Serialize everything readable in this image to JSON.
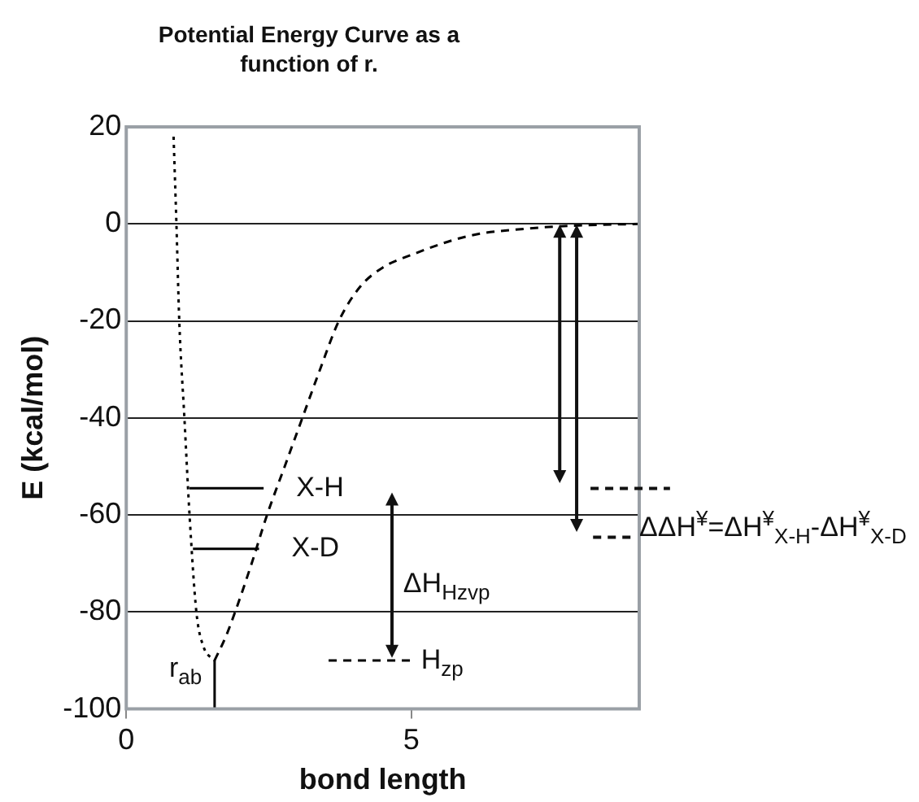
{
  "chart_data": {
    "type": "line",
    "title": "Potential Energy Curve as a function of r.",
    "xlabel": "bond length",
    "ylabel": "E (kcal/mol)",
    "xlim": [
      0,
      9
    ],
    "xticks": [
      0,
      5
    ],
    "ylim": [
      -100,
      20
    ],
    "yticks": [
      -100,
      -80,
      -60,
      -40,
      -20,
      0,
      20
    ],
    "grid": "y",
    "legend": false,
    "series": [
      {
        "color": "#000000",
        "line_style": "dotted",
        "x": [
          0.83,
          0.88,
          0.93,
          1.02,
          1.11,
          1.23,
          1.35,
          1.55
        ],
        "values": [
          18,
          0,
          -20,
          -40,
          -60,
          -80,
          -87,
          -90
        ]
      },
      {
        "color": "#000000",
        "line_style": "dashed",
        "x": [
          1.55,
          1.75,
          1.91,
          2.2,
          2.47,
          2.78,
          3.09,
          3.4,
          3.73,
          4.1,
          4.5,
          5,
          6,
          7,
          8,
          9
        ],
        "values": [
          -90,
          -85,
          -80,
          -70,
          -60,
          -50,
          -40,
          -30,
          -20,
          -13,
          -9,
          -6.4,
          -2.5,
          -1,
          -0.3,
          0
        ]
      },
      {
        "color": "#000000",
        "line_style": "solid",
        "x": [
          1.11,
          2.41
        ],
        "values": [
          -54.5,
          -54.5
        ]
      },
      {
        "color": "#000000",
        "line_style": "solid",
        "x": [
          1.17,
          2.33
        ],
        "values": [
          -67,
          -67
        ]
      },
      {
        "color": "#000000",
        "line_style": "solid",
        "x": [
          1.55,
          1.55
        ],
        "values": [
          -100,
          -90
        ]
      },
      {
        "color": "#000000",
        "line_style": "dashed",
        "x": [
          3.55,
          5
        ],
        "values": [
          -90,
          -90
        ]
      }
    ],
    "annotations": [
      {
        "text": "X-H",
        "x": 2.41,
        "y": -54.5
      },
      {
        "text": "X-D",
        "x": 2.33,
        "y": -67
      },
      "ΔH$_{Hzvp}$",
      {
        "text": "r$_{ab}$",
        "x": 1.55,
        "y": -90
      },
      {
        "text": "H$_{zp}$",
        "x": 5,
        "y": -90
      },
      "ΔΔH$^{¥}$=ΔH$^{¥}$$_{X-H}$-ΔH$^{¥}$$_{X-D}$"
    ]
  }
}
